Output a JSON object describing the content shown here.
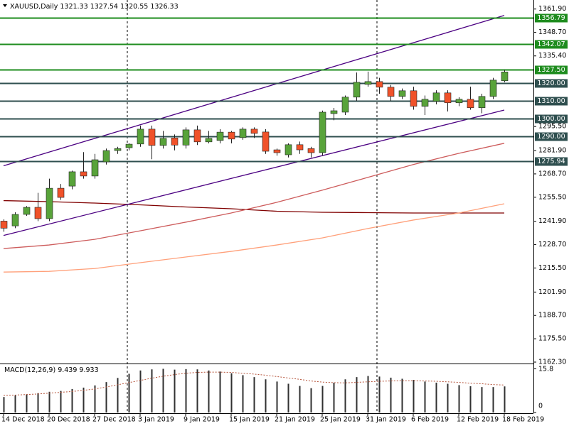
{
  "chart_data": [
    {
      "type": "candlestick",
      "title": "XAUUSD,Daily",
      "categories": [
        "14 Dec 2018",
        null,
        null,
        null,
        "20 Dec 2018",
        null,
        null,
        null,
        "27 Dec 2018",
        null,
        null,
        null,
        "3 Jan 2019",
        null,
        null,
        null,
        "9 Jan 2019",
        null,
        null,
        null,
        "15 Jan 2019",
        null,
        null,
        null,
        "21 Jan 2019",
        null,
        null,
        null,
        "25 Jan 2019",
        null,
        null,
        null,
        "31 Jan 2019",
        null,
        null,
        null,
        "6 Feb 2019",
        null,
        null,
        null,
        "12 Feb 2019",
        null,
        null,
        null,
        "18 Feb 2019"
      ],
      "open": [
        1242,
        1239.3,
        1245.8,
        1249.8,
        1243.4,
        1260.6,
        1261.8,
        1269.9,
        1267.5,
        1275.5,
        1281.9,
        1283.5,
        1285.6,
        1294,
        1284.8,
        1289,
        1285,
        1293.6,
        1286.8,
        1287.6,
        1292.3,
        1289.2,
        1294,
        1292.4,
        1282.3,
        1279.5,
        1285.2,
        1283,
        1280.7,
        1302.8,
        1303.6,
        1312.1,
        1319.3,
        1320.9,
        1317.7,
        1312.5,
        1315.7,
        1306.9,
        1309.7,
        1314.5,
        1308.9,
        1310.9,
        1306.1,
        1312.5,
        1321.33
      ],
      "high": [
        1243,
        1247,
        1250.5,
        1258,
        1266,
        1263,
        1270.5,
        1281,
        1280,
        1283,
        1284,
        1286,
        1296,
        1296,
        1293,
        1291,
        1295,
        1296,
        1293,
        1294,
        1293,
        1295,
        1295,
        1294,
        1283,
        1286,
        1287,
        1284,
        1304.5,
        1306,
        1313,
        1326,
        1326.5,
        1323,
        1319,
        1317,
        1318,
        1313,
        1316,
        1316,
        1312,
        1318,
        1314,
        1323,
        1327.54
      ],
      "low": [
        1236,
        1238,
        1245,
        1242,
        1242,
        1254,
        1260,
        1266,
        1266,
        1274,
        1280,
        1282,
        1284,
        1277,
        1283,
        1282,
        1283,
        1285,
        1286,
        1286,
        1286,
        1288,
        1289,
        1280,
        1279,
        1278,
        1280,
        1278,
        1279,
        1299,
        1302,
        1310,
        1318,
        1314,
        1310,
        1311,
        1305,
        1302,
        1308,
        1304,
        1307,
        1305,
        1303,
        1311,
        1320.55
      ],
      "close": [
        1238,
        1245.8,
        1249.8,
        1243.4,
        1260.6,
        1255.4,
        1269.9,
        1267.5,
        1276.7,
        1281.9,
        1283,
        1285.5,
        1294,
        1284.8,
        1288.8,
        1285,
        1293.6,
        1286.8,
        1288.8,
        1292.3,
        1288.4,
        1294,
        1291.6,
        1281.5,
        1280.7,
        1285.2,
        1282.3,
        1280.7,
        1303.6,
        1304.4,
        1312.1,
        1320.5,
        1320.9,
        1317.7,
        1312.5,
        1315.7,
        1306.9,
        1310.9,
        1314.5,
        1308.9,
        1310.9,
        1306.1,
        1312.5,
        1321.7,
        1326.33
      ],
      "up_color": "#58a33a",
      "down_color": "#f0522a",
      "ylim": [
        1161.5,
        1365
      ],
      "yticks": [
        {
          "value": 1361.9,
          "label": "1361.90"
        },
        {
          "value": 1348.7,
          "label": "1348.70"
        },
        {
          "value": 1335.4,
          "label": "1335.40"
        },
        {
          "value": 1295.5,
          "label": "1295.50"
        },
        {
          "value": 1281.9,
          "label": "1281.90"
        },
        {
          "value": 1268.7,
          "label": "1268.70"
        },
        {
          "value": 1255.5,
          "label": "1255.50"
        },
        {
          "value": 1241.9,
          "label": "1241.90"
        },
        {
          "value": 1228.7,
          "label": "1228.70"
        },
        {
          "value": 1215.5,
          "label": "1215.50"
        },
        {
          "value": 1201.9,
          "label": "1201.90"
        },
        {
          "value": 1188.7,
          "label": "1188.70"
        },
        {
          "value": 1175.5,
          "label": "1175.50"
        },
        {
          "value": 1162.3,
          "label": "1162.30"
        }
      ],
      "levels": [
        {
          "value": 1356.79,
          "color": "#1e8c1e"
        },
        {
          "value": 1342.07,
          "color": "#1e8c1e"
        },
        {
          "value": 1327.5,
          "label": "1327.50",
          "color": "#1e8c1e"
        },
        {
          "value": 1320,
          "label": "1320.00",
          "color": "#2f4f4f"
        },
        {
          "value": 1310,
          "label": "1310.00",
          "color": "#2f4f4f"
        },
        {
          "value": 1300,
          "label": "1300.00",
          "color": "#2f4f4f"
        },
        {
          "value": 1290,
          "label": "1290.00",
          "color": "#2f4f4f"
        },
        {
          "value": 1275.94,
          "color": "#2f4f4f"
        }
      ],
      "lines": [
        {
          "color": "#800000",
          "x": [
            "14 Dec 2018",
            "20 Dec 2018",
            "27 Dec 2018",
            "3 Jan 2019",
            "9 Jan 2019",
            "15 Jan 2019",
            "21 Jan 2019",
            "25 Jan 2019",
            "31 Jan 2019",
            "6 Feb 2019",
            "12 Feb 2019",
            "18 Feb 2019"
          ],
          "values": [
            1253.6,
            1253,
            1252.2,
            1251.2,
            1250,
            1249,
            1247.6,
            1247,
            1246.8,
            1246.6,
            1246.6,
            1246.6
          ]
        },
        {
          "color": "#cd5c5c",
          "x": [
            "14 Dec 2018",
            "20 Dec 2018",
            "27 Dec 2018",
            "3 Jan 2019",
            "9 Jan 2019",
            "15 Jan 2019",
            "21 Jan 2019",
            "25 Jan 2019",
            "31 Jan 2019",
            "6 Feb 2019",
            "12 Feb 2019",
            "18 Feb 2019"
          ],
          "values": [
            1226.5,
            1228.5,
            1231.7,
            1236.5,
            1241.4,
            1246.6,
            1252.6,
            1259.5,
            1266.7,
            1274,
            1280.3,
            1286
          ]
        },
        {
          "color": "#ffa07a",
          "x": [
            "14 Dec 2018",
            "20 Dec 2018",
            "27 Dec 2018",
            "3 Jan 2019",
            "9 Jan 2019",
            "15 Jan 2019",
            "21 Jan 2019",
            "25 Jan 2019",
            "31 Jan 2019",
            "6 Feb 2019",
            "12 Feb 2019",
            "18 Feb 2019"
          ],
          "values": [
            1213.2,
            1213.6,
            1215.2,
            1218.5,
            1221.7,
            1224.9,
            1228.5,
            1232.5,
            1237.8,
            1242.6,
            1246.6,
            1251.8
          ]
        },
        {
          "color": "#4b0082",
          "x": [
            "14 Dec 2018",
            "18 Feb 2019"
          ],
          "values": [
            1273.3,
            1358.3
          ]
        },
        {
          "color": "#4b0082",
          "x": [
            "14 Dec 2018",
            "18 Feb 2019"
          ],
          "values": [
            1233.9,
            1304.8
          ]
        }
      ]
    },
    {
      "type": "bar",
      "title": "MACD(12,26,9)",
      "values": [
        5.6,
        6.2,
        6.6,
        7.0,
        7.5,
        7.8,
        8.5,
        9.0,
        9.8,
        11.0,
        12.5,
        14.0,
        15.2,
        15.6,
        15.8,
        15.5,
        15.7,
        15.6,
        15.2,
        14.8,
        14.2,
        13.5,
        12.8,
        12.0,
        11.2,
        10.4,
        9.6,
        8.8,
        9.6,
        10.8,
        12.0,
        12.8,
        13.2,
        13.0,
        12.6,
        12.2,
        11.8,
        11.2,
        10.8,
        10.4,
        9.9,
        9.5,
        9.2,
        9.2,
        9.439
      ],
      "signal": [
        6.2,
        6.3,
        6.5,
        6.7,
        7.0,
        7.3,
        7.6,
        8.0,
        8.5,
        9.2,
        10.0,
        10.8,
        11.6,
        12.4,
        13.1,
        13.7,
        14.2,
        14.5,
        14.6,
        14.6,
        14.5,
        14.2,
        13.9,
        13.5,
        13.0,
        12.5,
        12.0,
        11.4,
        11.0,
        10.8,
        10.7,
        10.9,
        11.1,
        11.3,
        11.4,
        11.5,
        11.5,
        11.4,
        11.3,
        11.1,
        10.9,
        10.6,
        10.4,
        10.1,
        9.933
      ],
      "color": "#303030",
      "signal_color": "#b5533a",
      "ylim": [
        0,
        17.2
      ],
      "yticks": [
        15.8,
        0
      ]
    }
  ]
}
